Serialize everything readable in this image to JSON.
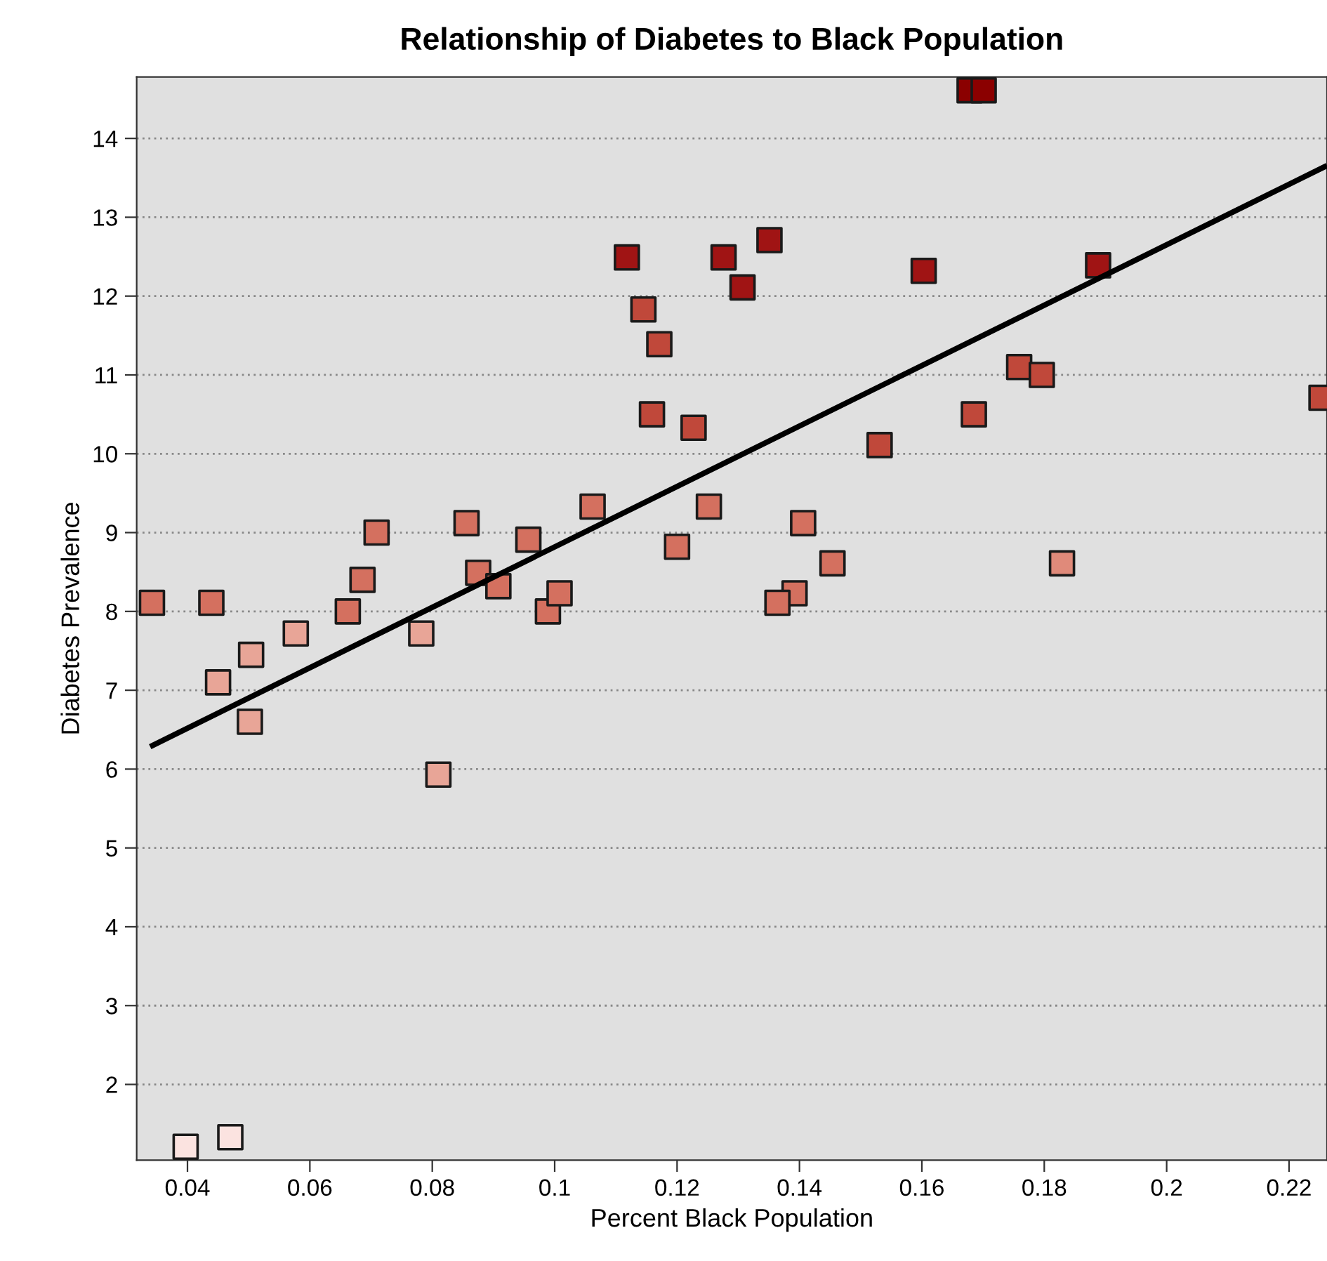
{
  "chart_data": {
    "type": "scatter",
    "title": "Relationship of Diabetes to Black Population",
    "xlabel": "Percent Black Population",
    "ylabel": "Diabetes Prevalence",
    "xlim": [
      0.0317,
      0.2262
    ],
    "ylim": [
      1.04,
      14.78
    ],
    "xticks": [
      0.04,
      0.06,
      0.08,
      0.1,
      0.12,
      0.14,
      0.16,
      0.18,
      0.2,
      0.22
    ],
    "yticks": [
      2,
      3,
      4,
      5,
      6,
      7,
      8,
      9,
      10,
      11,
      12,
      13,
      14
    ],
    "grid": "y",
    "marker": "square",
    "series": [
      {
        "x": [
          0.0342,
          0.0439,
          0.045,
          0.0502,
          0.0504,
          0.0577,
          0.0397,
          0.047,
          0.0662,
          0.0686,
          0.0709,
          0.0782,
          0.081,
          0.0856,
          0.0875,
          0.0908,
          0.0957,
          0.0989,
          0.1008,
          0.1062,
          0.1118,
          0.1145,
          0.1171,
          0.1159,
          0.1227,
          0.12,
          0.1252,
          0.1276,
          0.1307,
          0.1351,
          0.1406,
          0.1454,
          0.1392,
          0.1364,
          0.1531,
          0.1603,
          0.1685,
          0.1678,
          0.1701,
          0.1759,
          0.1796,
          0.1829,
          0.1888,
          0.2253
        ],
        "values": [
          8.11,
          8.11,
          7.1,
          6.6,
          7.45,
          7.72,
          1.21,
          1.33,
          8.0,
          8.4,
          9.0,
          7.72,
          5.93,
          9.12,
          8.49,
          8.32,
          8.91,
          8.0,
          8.23,
          9.33,
          12.49,
          11.83,
          11.39,
          10.5,
          10.33,
          8.82,
          9.33,
          12.49,
          12.11,
          12.71,
          9.12,
          8.61,
          8.23,
          8.11,
          10.11,
          12.32,
          10.5,
          14.61,
          14.61,
          11.1,
          11.0,
          8.61,
          12.39,
          10.71
        ],
        "colors": [
          "#d4705f",
          "#d4705f",
          "#e8a597",
          "#e8a597",
          "#e8a597",
          "#e8a597",
          "#fbe3e0",
          "#fbe3e0",
          "#d4705f",
          "#d4705f",
          "#d4705f",
          "#e8a597",
          "#e8a597",
          "#d4705f",
          "#d4705f",
          "#d4705f",
          "#d4705f",
          "#d4705f",
          "#d4705f",
          "#d4705f",
          "#a01414",
          "#c0483a",
          "#c0483a",
          "#c0483a",
          "#c0483a",
          "#d4705f",
          "#d4705f",
          "#a01414",
          "#a01414",
          "#a01414",
          "#d4705f",
          "#d4705f",
          "#d4705f",
          "#d4705f",
          "#c0483a",
          "#a01414",
          "#c0483a",
          "#8b0000",
          "#8b0000",
          "#c0483a",
          "#c0483a",
          "#e08a7a",
          "#a01414",
          "#c0483a"
        ]
      },
      {
        "type": "line",
        "color": "#000000",
        "line_style": "solid",
        "marker": "none",
        "x": [
          0.0343,
          0.2258
        ],
        "values": [
          6.3,
          13.64
        ]
      }
    ]
  }
}
